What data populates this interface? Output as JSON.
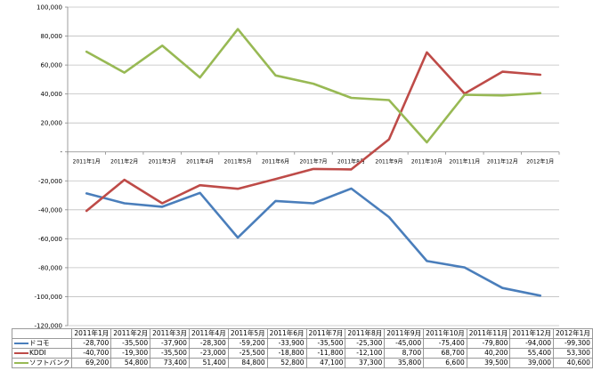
{
  "chart_data": {
    "type": "line",
    "categories": [
      "2011年1月",
      "2011年2月",
      "2011年3月",
      "2011年4月",
      "2011年5月",
      "2011年6月",
      "2011年7月",
      "2011年8月",
      "2011年9月",
      "2011年10月",
      "2011年11月",
      "2011年12月",
      "2012年1月"
    ],
    "series": [
      {
        "name": "ドコモ",
        "color": "#4a7ebb",
        "values": [
          -28700,
          -35500,
          -37900,
          -28300,
          -59200,
          -33900,
          -35500,
          -25300,
          -45000,
          -75400,
          -79800,
          -94000,
          -99300
        ]
      },
      {
        "name": "KDDI",
        "color": "#be4b48",
        "values": [
          -40700,
          -19300,
          -35500,
          -23000,
          -25500,
          -18800,
          -11800,
          -12100,
          8700,
          68700,
          40200,
          55400,
          53300
        ]
      },
      {
        "name": "ソフトバンク",
        "color": "#98b954",
        "values": [
          69200,
          54800,
          73400,
          51400,
          84800,
          52800,
          47100,
          37300,
          35800,
          6600,
          39500,
          39000,
          40600
        ]
      }
    ],
    "series_labels": {
      "docomo": "ドコモ",
      "kddi": "KDDI",
      "softbank": "ソフトバンク"
    },
    "cell_text": {
      "docomo": [
        "-28,700",
        "-35,500",
        "-37,900",
        "-28,300",
        "-59,200",
        "-33,900",
        "-35,500",
        "-25,300",
        "-45,000",
        "-75,400",
        "-79,800",
        "-94,000",
        "-99,300"
      ],
      "kddi": [
        "-40,700",
        "-19,300",
        "-35,500",
        "-23,000",
        "-25,500",
        "-18,800",
        "-11,800",
        "-12,100",
        "8,700",
        "68,700",
        "40,200",
        "55,400",
        "53,300"
      ],
      "softbank": [
        "69,200",
        "54,800",
        "73,400",
        "51,400",
        "84,800",
        "52,800",
        "47,100",
        "37,300",
        "35,800",
        "6,600",
        "39,500",
        "39,000",
        "40,600"
      ]
    },
    "yticks": [
      100000,
      80000,
      60000,
      40000,
      20000,
      0,
      -20000,
      -40000,
      -60000,
      -80000,
      -100000,
      -120000
    ],
    "ytick_labels": [
      "100,000",
      "80,000",
      "60,000",
      "40,000",
      "20,000",
      "-",
      "-20,000",
      "-40,000",
      "-60,000",
      "-80,000",
      "-100,000",
      "-120,000"
    ],
    "ylim": [
      -120000,
      100000
    ],
    "grid": true,
    "title": "",
    "xlabel": "",
    "ylabel": ""
  }
}
